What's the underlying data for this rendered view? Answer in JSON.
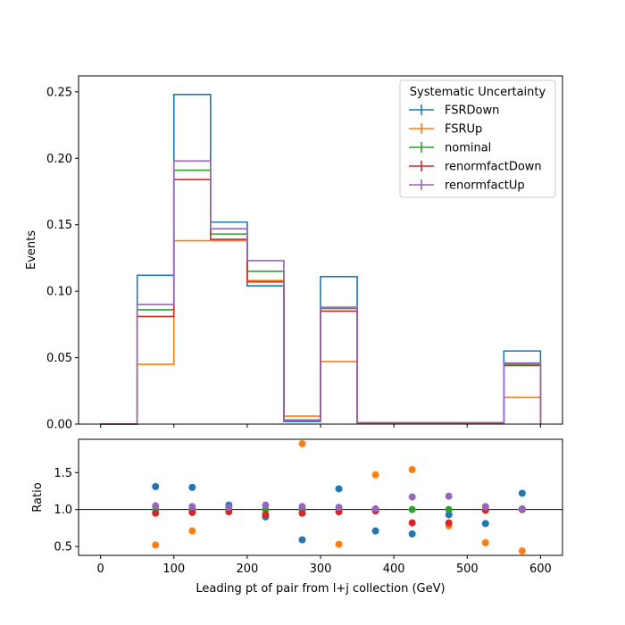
{
  "chart_data": [
    {
      "type": "histogram-step",
      "xlabel": "",
      "ylabel": "Events",
      "xlim": [
        -30,
        630
      ],
      "ylim": [
        0,
        0.262
      ],
      "bin_edges": [
        0,
        50,
        100,
        150,
        200,
        250,
        300,
        350,
        400,
        450,
        500,
        550,
        600
      ],
      "yticks": [
        "0.00",
        "0.05",
        "0.10",
        "0.15",
        "0.20",
        "0.25"
      ],
      "yticks_values": [
        0,
        0.05,
        0.1,
        0.15,
        0.2,
        0.25
      ],
      "legend": {
        "title": "Systematic Uncertainty",
        "placement": "top-right"
      },
      "series": [
        {
          "name": "FSRDown",
          "color": "#1f77b4",
          "values": [
            0,
            0.112,
            0.248,
            0.152,
            0.104,
            0.002,
            0.111,
            0.001,
            0.001,
            0.001,
            0.001,
            0.055
          ]
        },
        {
          "name": "FSRUp",
          "color": "#ff7f0e",
          "values": [
            0,
            0.045,
            0.138,
            0.138,
            0.108,
            0.006,
            0.047,
            0.001,
            0.001,
            0.001,
            0.0005,
            0.02
          ]
        },
        {
          "name": "nominal",
          "color": "#2ca02c",
          "values": [
            0,
            0.086,
            0.191,
            0.143,
            0.115,
            0.003,
            0.087,
            0.001,
            0.001,
            0.001,
            0.001,
            0.045
          ]
        },
        {
          "name": "renormfactDown",
          "color": "#d62728",
          "values": [
            0,
            0.081,
            0.184,
            0.139,
            0.107,
            0.003,
            0.085,
            0.001,
            0.001,
            0.001,
            0.001,
            0.044
          ]
        },
        {
          "name": "renormfactUp",
          "color": "#9467bd",
          "values": [
            0,
            0.09,
            0.198,
            0.147,
            0.123,
            0.003,
            0.088,
            0.001,
            0.001,
            0.001,
            0.001,
            0.046
          ]
        }
      ]
    },
    {
      "type": "scatter",
      "xlabel": "Leading pt of pair from l+j collection (GeV)",
      "ylabel": "Ratio",
      "xlim": [
        -30,
        630
      ],
      "ylim": [
        0.38,
        1.95
      ],
      "reference_line": 1.0,
      "xticks": [
        "0",
        "100",
        "200",
        "300",
        "400",
        "500",
        "600"
      ],
      "xticks_values": [
        0,
        100,
        200,
        300,
        400,
        500,
        600
      ],
      "yticks": [
        "0.5",
        "1.0",
        "1.5"
      ],
      "yticks_values": [
        0.5,
        1.0,
        1.5
      ],
      "x": [
        75,
        125,
        175,
        225,
        275,
        325,
        375,
        425,
        475,
        525,
        575
      ],
      "series": [
        {
          "name": "FSRDown",
          "color": "#1f77b4",
          "values": [
            1.31,
            1.3,
            1.06,
            0.9,
            0.59,
            1.28,
            0.71,
            0.67,
            0.93,
            0.81,
            1.22
          ]
        },
        {
          "name": "FSRUp",
          "color": "#ff7f0e",
          "values": [
            0.52,
            0.71,
            null,
            null,
            1.89,
            0.53,
            1.47,
            1.54,
            0.78,
            0.55,
            0.44
          ]
        },
        {
          "name": "nominal",
          "color": "#2ca02c",
          "values": [
            1.0,
            1.0,
            1.0,
            1.0,
            1.0,
            1.0,
            1.0,
            1.0,
            1.0,
            1.0,
            1.0
          ]
        },
        {
          "name": "renormfactDown",
          "color": "#d62728",
          "values": [
            0.95,
            0.96,
            0.97,
            0.93,
            0.95,
            0.97,
            0.98,
            0.82,
            0.82,
            0.99,
            1.0
          ]
        },
        {
          "name": "renormfactUp",
          "color": "#9467bd",
          "values": [
            1.05,
            1.04,
            1.03,
            1.06,
            1.04,
            1.03,
            1.01,
            1.17,
            1.18,
            1.04,
            1.01
          ]
        }
      ]
    }
  ]
}
